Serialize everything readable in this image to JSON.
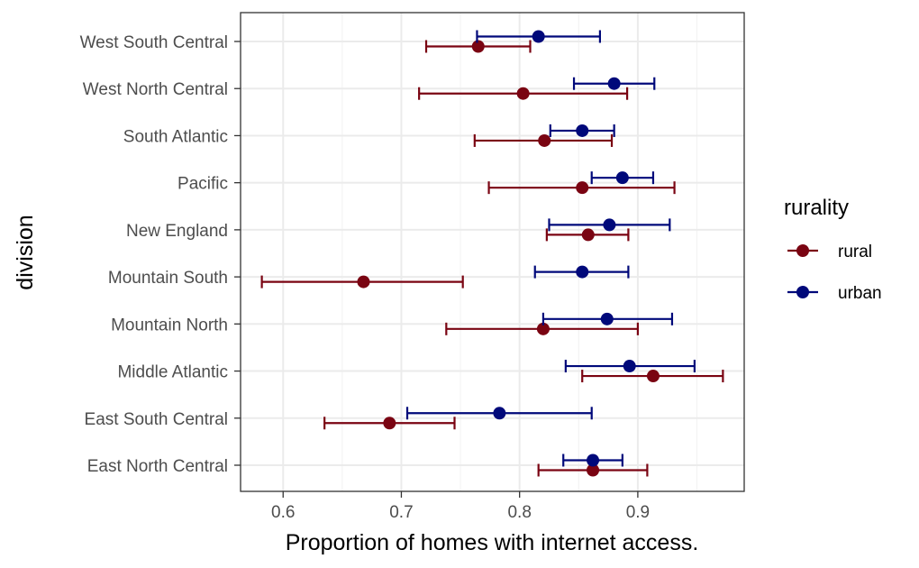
{
  "chart_data": {
    "type": "scatter",
    "subtype": "dot-with-horizontal-errorbars",
    "xlabel": "Proportion of homes with internet access.",
    "ylabel": "division",
    "xlim": [
      0.564,
      0.99
    ],
    "xticks": [
      0.6,
      0.7,
      0.8,
      0.9
    ],
    "xtick_labels": [
      "0.6",
      "0.7",
      "0.8",
      "0.9"
    ],
    "grid": true,
    "theme": "bw",
    "categories": [
      "East North Central",
      "East South Central",
      "Middle Atlantic",
      "Mountain North",
      "Mountain South",
      "New England",
      "Pacific",
      "South Atlantic",
      "West North Central",
      "West South Central"
    ],
    "legend": {
      "title": "rurality",
      "position": "right",
      "entries": [
        {
          "label": "rural",
          "color": "#7a0412"
        },
        {
          "label": "urban",
          "color": "#00097a"
        }
      ]
    },
    "series": [
      {
        "name": "rural",
        "color": "#7a0412",
        "values": [
          0.862,
          0.69,
          0.913,
          0.82,
          0.668,
          0.858,
          0.853,
          0.821,
          0.803,
          0.765
        ],
        "lower": [
          0.816,
          0.635,
          0.853,
          0.738,
          0.582,
          0.823,
          0.774,
          0.762,
          0.715,
          0.721
        ],
        "upper": [
          0.908,
          0.745,
          0.972,
          0.9,
          0.752,
          0.892,
          0.931,
          0.878,
          0.891,
          0.809
        ]
      },
      {
        "name": "urban",
        "color": "#00097a",
        "values": [
          0.862,
          0.783,
          0.893,
          0.874,
          0.853,
          0.876,
          0.887,
          0.853,
          0.88,
          0.816
        ],
        "lower": [
          0.837,
          0.705,
          0.839,
          0.82,
          0.813,
          0.825,
          0.861,
          0.826,
          0.846,
          0.764
        ],
        "upper": [
          0.887,
          0.861,
          0.948,
          0.929,
          0.892,
          0.927,
          0.913,
          0.88,
          0.914,
          0.868
        ]
      }
    ]
  }
}
